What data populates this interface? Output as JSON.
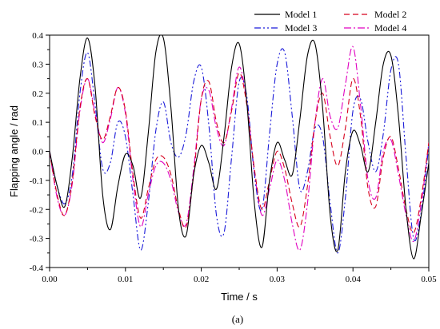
{
  "chart_data": {
    "type": "line",
    "title": "",
    "caption": "(a)",
    "xlabel": "Time / s",
    "ylabel": "Flapping angle / rad",
    "xlim": [
      0.0,
      0.05
    ],
    "ylim": [
      -0.4,
      0.4
    ],
    "grid": false,
    "legend_position": "top-right",
    "x_ticks": [
      "0.00",
      "0.01",
      "0.02",
      "0.03",
      "0.04",
      "0.05"
    ],
    "y_ticks": [
      "-0.4",
      "-0.3",
      "-0.2",
      "-0.1",
      "0.0",
      "0.1",
      "0.2",
      "0.3",
      "0.4"
    ],
    "x": [
      0,
      0.001,
      0.002,
      0.003,
      0.004,
      0.005,
      0.006,
      0.007,
      0.008,
      0.009,
      0.01,
      0.011,
      0.012,
      0.013,
      0.014,
      0.015,
      0.016,
      0.017,
      0.018,
      0.019,
      0.02,
      0.021,
      0.022,
      0.023,
      0.024,
      0.025,
      0.026,
      0.027,
      0.028,
      0.029,
      0.03,
      0.031,
      0.032,
      0.033,
      0.034,
      0.035,
      0.036,
      0.037,
      0.038,
      0.039,
      0.04,
      0.041,
      0.042,
      0.043,
      0.044,
      0.045,
      0.046,
      0.047,
      0.048,
      0.049,
      0.05
    ],
    "series": [
      {
        "name": "Model 1",
        "color": "#000000",
        "dash": "",
        "values": [
          0.0,
          -0.12,
          -0.19,
          -0.02,
          0.25,
          0.39,
          0.22,
          -0.15,
          -0.27,
          -0.12,
          -0.01,
          -0.05,
          -0.16,
          0.06,
          0.34,
          0.39,
          0.15,
          -0.2,
          -0.29,
          -0.08,
          0.02,
          -0.04,
          -0.13,
          0.05,
          0.29,
          0.37,
          0.17,
          -0.18,
          -0.33,
          -0.1,
          0.03,
          -0.03,
          -0.08,
          0.11,
          0.33,
          0.37,
          0.15,
          -0.22,
          -0.34,
          -0.07,
          0.07,
          0.02,
          -0.07,
          0.1,
          0.3,
          0.33,
          0.12,
          -0.2,
          -0.37,
          -0.22,
          -0.04
        ]
      },
      {
        "name": "Model 2",
        "color": "#d6001c",
        "dash": "7,4",
        "values": [
          0.0,
          -0.15,
          -0.22,
          -0.1,
          0.15,
          0.25,
          0.12,
          0.04,
          0.12,
          0.22,
          0.14,
          -0.08,
          -0.23,
          -0.13,
          -0.03,
          -0.02,
          -0.08,
          -0.2,
          -0.26,
          -0.08,
          0.18,
          0.24,
          0.1,
          0.03,
          0.14,
          0.27,
          0.16,
          -0.06,
          -0.2,
          -0.1,
          0.0,
          -0.06,
          -0.18,
          -0.26,
          -0.12,
          0.1,
          0.2,
          0.05,
          -0.05,
          0.08,
          0.25,
          0.12,
          -0.13,
          -0.19,
          -0.02,
          0.05,
          -0.06,
          -0.2,
          -0.28,
          -0.16,
          0.03
        ]
      },
      {
        "name": "Model 3",
        "color": "#1a1ad9",
        "dash": "8,3,2,3,2,3",
        "values": [
          0.0,
          -0.12,
          -0.18,
          -0.08,
          0.2,
          0.34,
          0.16,
          -0.06,
          -0.04,
          0.1,
          0.05,
          -0.15,
          -0.34,
          -0.18,
          0.07,
          0.17,
          0.03,
          -0.02,
          0.06,
          0.24,
          0.29,
          0.09,
          -0.22,
          -0.28,
          -0.02,
          0.24,
          0.19,
          -0.08,
          -0.2,
          0.06,
          0.3,
          0.34,
          0.12,
          -0.13,
          -0.07,
          0.08,
          0.05,
          -0.18,
          -0.35,
          -0.16,
          0.14,
          0.18,
          0.03,
          -0.07,
          0.06,
          0.28,
          0.3,
          -0.02,
          -0.3,
          -0.21,
          0.02
        ]
      },
      {
        "name": "Model 4",
        "color": "#e000c0",
        "dash": "9,3,2,3",
        "values": [
          0.0,
          -0.16,
          -0.22,
          -0.11,
          0.14,
          0.25,
          0.13,
          0.03,
          0.11,
          0.22,
          0.13,
          -0.1,
          -0.26,
          -0.15,
          -0.05,
          -0.04,
          -0.1,
          -0.21,
          -0.25,
          -0.06,
          0.18,
          0.21,
          0.08,
          0.02,
          0.15,
          0.29,
          0.17,
          -0.07,
          -0.22,
          -0.13,
          -0.03,
          -0.1,
          -0.25,
          -0.34,
          -0.18,
          0.1,
          0.25,
          0.12,
          0.08,
          0.23,
          0.36,
          0.16,
          -0.1,
          -0.16,
          0.0,
          0.04,
          -0.08,
          -0.22,
          -0.31,
          -0.18,
          0.03
        ]
      }
    ]
  }
}
